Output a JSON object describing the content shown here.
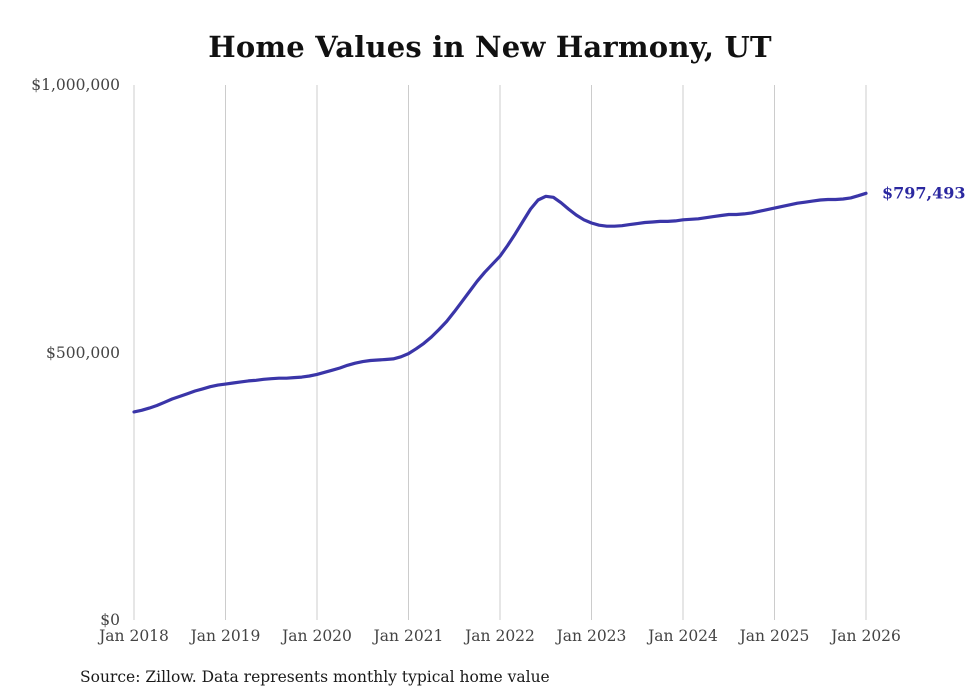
{
  "title": "Home Values in New Harmony, UT",
  "source_note": "Source: Zillow. Data represents monthly typical home value",
  "end_label": "$797,493",
  "colors": {
    "line": "#3a35a8",
    "end_label": "#2b28a0",
    "gridline": "#cccccc",
    "tick_text": "#444444",
    "title_text": "#111111"
  },
  "chart_data": {
    "type": "line",
    "title": "Home Values in New Harmony, UT",
    "xlabel": "",
    "ylabel": "",
    "grid": "vertical-only",
    "legend": "none",
    "xlim": [
      2018,
      2026
    ],
    "ylim": [
      0,
      1000000
    ],
    "y_ticks": [
      {
        "label": "$0",
        "v": 0
      },
      {
        "label": "$500,000",
        "v": 500000
      },
      {
        "label": "$1,000,000",
        "v": 1000000
      }
    ],
    "x_ticks": [
      {
        "label": "Jan 2018",
        "t": 2018
      },
      {
        "label": "Jan 2019",
        "t": 2019
      },
      {
        "label": "Jan 2020",
        "t": 2020
      },
      {
        "label": "Jan 2021",
        "t": 2021
      },
      {
        "label": "Jan 2022",
        "t": 2022
      },
      {
        "label": "Jan 2023",
        "t": 2023
      },
      {
        "label": "Jan 2024",
        "t": 2024
      },
      {
        "label": "Jan 2025",
        "t": 2025
      },
      {
        "label": "Jan 2026",
        "t": 2026
      }
    ],
    "series_name": "Typical home value (monthly)",
    "start_month": "2018-01",
    "values": [
      389000,
      392000,
      396000,
      401000,
      407000,
      413000,
      418000,
      423000,
      428000,
      432000,
      436000,
      439000,
      441000,
      443000,
      445000,
      447000,
      448000,
      450000,
      451000,
      452000,
      452000,
      453000,
      454000,
      456000,
      459000,
      463000,
      467000,
      471000,
      476000,
      480000,
      483000,
      485000,
      486000,
      487000,
      488000,
      492000,
      498000,
      507000,
      517000,
      529000,
      543000,
      558000,
      576000,
      595000,
      614000,
      633000,
      650000,
      665000,
      680000,
      700000,
      722000,
      745000,
      768000,
      785000,
      792000,
      790000,
      780000,
      768000,
      757000,
      748000,
      742000,
      738000,
      736000,
      736000,
      737000,
      739000,
      741000,
      743000,
      744000,
      745000,
      745000,
      746000,
      748000,
      749000,
      750000,
      752000,
      754000,
      756000,
      758000,
      758000,
      759000,
      761000,
      764000,
      767000,
      770000,
      773000,
      776000,
      779000,
      781000,
      783000,
      785000,
      786000,
      786000,
      787000,
      789000,
      793000,
      797493
    ],
    "final_value": 797493,
    "final_value_label": "$797,493"
  }
}
